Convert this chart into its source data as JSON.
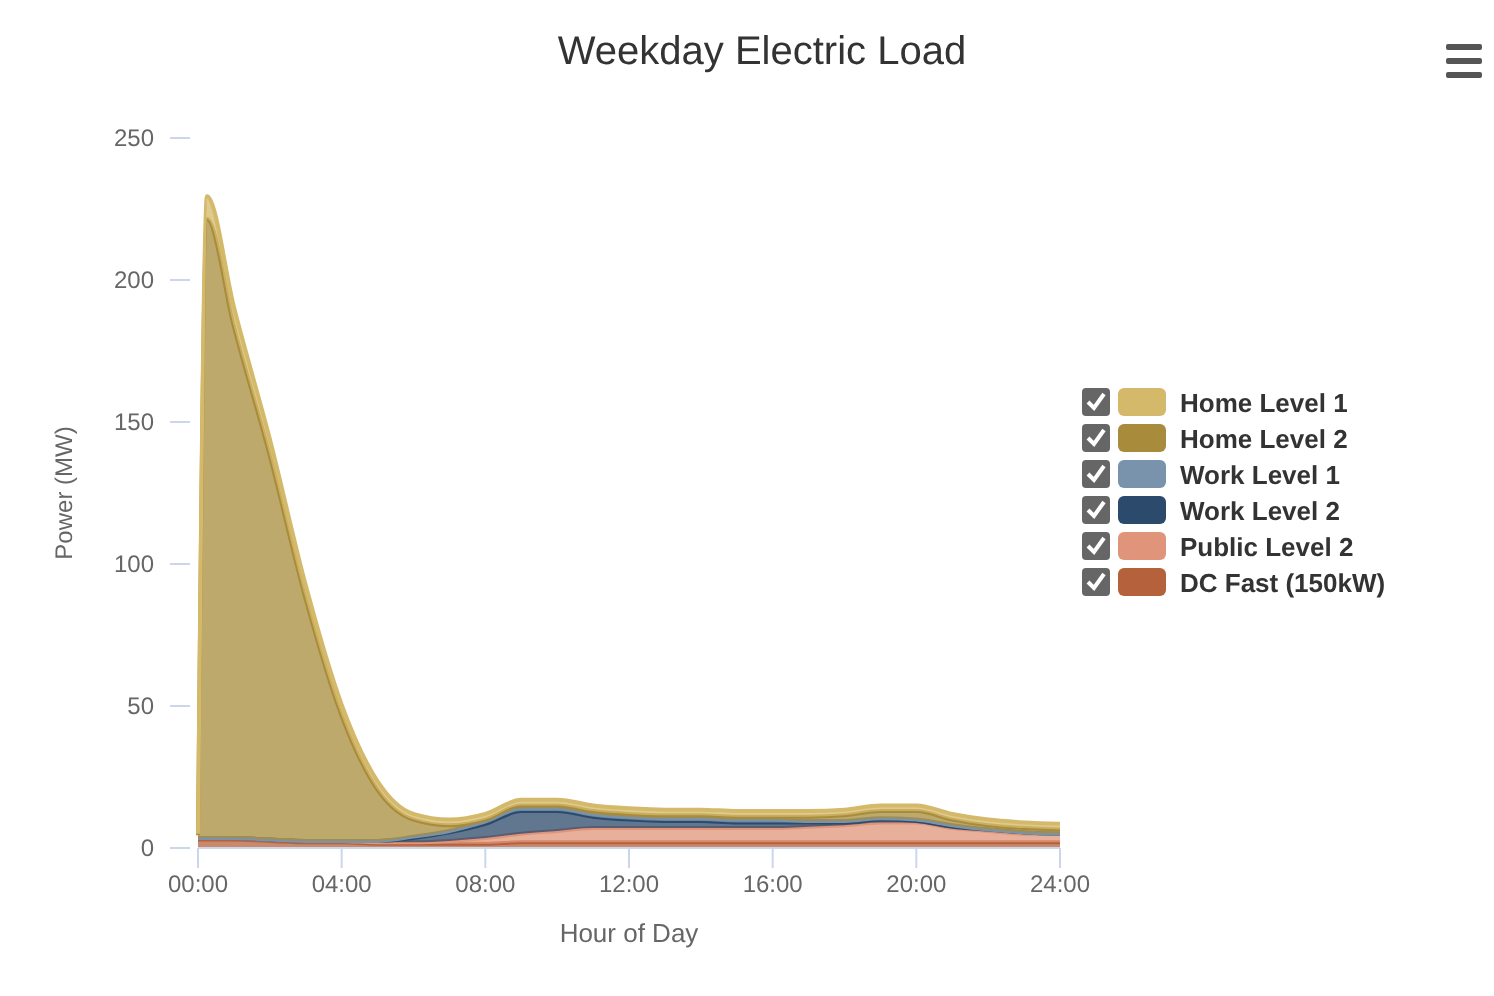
{
  "chart_data": {
    "type": "area",
    "stacked": true,
    "title": "Weekday Electric Load",
    "xlabel": "Hour of Day",
    "ylabel": "Power (MW)",
    "x": [
      0,
      0.25,
      1,
      2,
      3,
      4,
      5,
      6,
      7,
      8,
      9,
      10,
      11,
      12,
      13,
      14,
      15,
      16,
      17,
      18,
      19,
      20,
      21,
      22,
      23,
      24
    ],
    "xlim": [
      0,
      24
    ],
    "xticks": [
      {
        "value": 0,
        "label": "00:00"
      },
      {
        "value": 4,
        "label": "04:00"
      },
      {
        "value": 8,
        "label": "08:00"
      },
      {
        "value": 12,
        "label": "12:00"
      },
      {
        "value": 16,
        "label": "16:00"
      },
      {
        "value": 20,
        "label": "20:00"
      },
      {
        "value": 24,
        "label": "24:00"
      }
    ],
    "ylim": [
      0,
      250
    ],
    "yticks": [
      0,
      50,
      100,
      150,
      200,
      250
    ],
    "grid": false,
    "legend": "right",
    "series": [
      {
        "name": "DC Fast (150kW)",
        "color": "#b5623c",
        "values": [
          3,
          3,
          3,
          2.5,
          2,
          2,
          1.5,
          1.5,
          1.5,
          1.5,
          2,
          2,
          2,
          2,
          2,
          2,
          2,
          2,
          2,
          2,
          2,
          2,
          2,
          2,
          2,
          2
        ]
      },
      {
        "name": "Public Level 2",
        "color": "#e0957a",
        "values": [
          0.5,
          0.5,
          0.5,
          0.5,
          0.5,
          0.5,
          0.5,
          0.5,
          1,
          2,
          3,
          4,
          5,
          5,
          5,
          5,
          5,
          5,
          5.5,
          6,
          7,
          7,
          5,
          4,
          3,
          3
        ]
      },
      {
        "name": "Work Level 2",
        "color": "#2c4a6b",
        "values": [
          0,
          0,
          0,
          0,
          0,
          0,
          0.5,
          1.5,
          3,
          5,
          8,
          7,
          4,
          3,
          2.5,
          2.5,
          2,
          2,
          1.5,
          1,
          1,
          0.5,
          0.5,
          0.5,
          0.5,
          0
        ]
      },
      {
        "name": "Work Level 1",
        "color": "#7a93ad",
        "values": [
          0,
          0,
          0,
          0,
          0,
          0,
          0,
          0.5,
          0.5,
          1,
          1,
          1,
          1,
          1,
          1,
          1,
          1,
          1,
          0.5,
          0.5,
          0.5,
          0.5,
          0.5,
          0,
          0,
          0
        ]
      },
      {
        "name": "Home Level 2",
        "color": "#a88c3c",
        "values": [
          1,
          218,
          180,
          135,
          85,
          44,
          18,
          6,
          2,
          0.5,
          1,
          1,
          1,
          1,
          1,
          1,
          1,
          1,
          1.5,
          2,
          2.5,
          3,
          2,
          1.5,
          1.5,
          1.5
        ]
      },
      {
        "name": "Home Level 1",
        "color": "#d4b96a",
        "values": [
          0.5,
          8,
          7,
          6,
          5,
          4,
          3,
          2,
          2,
          2,
          2,
          2,
          2,
          2,
          2,
          2,
          2,
          2,
          2,
          2,
          2,
          2,
          2,
          2,
          2,
          2
        ]
      }
    ]
  }
}
